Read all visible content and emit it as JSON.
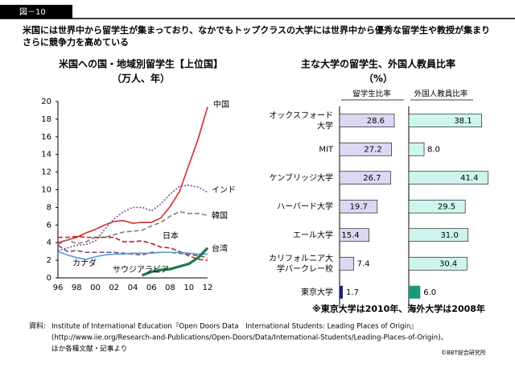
{
  "header": {
    "figure_label": "図－10",
    "description": "米国には世界中から留学生が集まっており、なかでもトップクラスの大学には世界中から優秀な留学生や教授が集まりさらに競争力を高めている"
  },
  "chart_data": [
    {
      "type": "line",
      "title": "米国への国・地域別留学生【上位国】",
      "subtitle": "（万人、年）",
      "categories": [
        "96",
        null,
        "98",
        null,
        "00",
        null,
        "02",
        null,
        "04",
        null,
        "06",
        null,
        "08",
        null,
        "10",
        null,
        "12"
      ],
      "ylim": [
        0,
        20
      ],
      "yticks": [
        0,
        2,
        4,
        6,
        8,
        10,
        12,
        14,
        16,
        18,
        20
      ],
      "series": [
        {
          "name": "中国",
          "color": "#d42a2a",
          "style": "solid",
          "values": [
            4.0,
            4.3,
            4.6,
            5.1,
            5.5,
            6.0,
            6.4,
            6.5,
            6.2,
            6.3,
            6.3,
            6.8,
            8.1,
            9.8,
            12.8,
            15.8,
            19.4
          ]
        },
        {
          "name": "インド",
          "color": "#7a4a9a",
          "style": "dotted",
          "values": [
            3.1,
            3.4,
            3.7,
            3.8,
            4.2,
            5.5,
            6.7,
            7.5,
            8.0,
            8.0,
            7.6,
            8.4,
            9.5,
            10.4,
            10.5,
            10.3,
            9.7
          ]
        },
        {
          "name": "韓国",
          "color": "#808080",
          "style": "dashed",
          "values": [
            3.8,
            4.3,
            3.9,
            4.1,
            4.6,
            4.6,
            4.9,
            5.2,
            5.3,
            5.4,
            5.9,
            6.3,
            7.0,
            7.5,
            7.3,
            7.3,
            7.1
          ]
        },
        {
          "name": "日本",
          "color": "#c02020",
          "style": "dashed",
          "values": [
            4.6,
            4.6,
            4.7,
            4.6,
            4.6,
            4.6,
            4.6,
            4.1,
            4.1,
            4.2,
            3.9,
            3.5,
            3.4,
            3.0,
            2.5,
            2.1,
            2.0
          ]
        },
        {
          "name": "台湾",
          "color": "#6a4a7a",
          "style": "dashed",
          "values": [
            3.7,
            3.0,
            3.1,
            2.9,
            2.9,
            2.9,
            2.9,
            2.8,
            2.7,
            2.6,
            2.9,
            2.9,
            2.9,
            2.8,
            2.7,
            2.5,
            2.3
          ]
        },
        {
          "name": "カナダ",
          "color": "#5b9bd5",
          "style": "solid",
          "values": [
            3.0,
            2.6,
            2.3,
            2.1,
            2.4,
            2.6,
            2.7,
            2.7,
            2.8,
            2.8,
            2.8,
            2.9,
            2.9,
            2.9,
            2.8,
            2.7,
            2.7
          ]
        },
        {
          "name": "サウジアラビア",
          "color": "#1a7a4a",
          "style": "thick",
          "values": [
            null,
            null,
            null,
            null,
            null,
            null,
            null,
            null,
            null,
            0.3,
            0.7,
            0.9,
            1.0,
            1.3,
            1.6,
            2.3,
            3.4
          ]
        }
      ]
    },
    {
      "type": "hbar_panels",
      "title": "主な大学の留学生、外国人教員比率",
      "subtitle": "（%）",
      "categories": [
        "オックスフォード\n大学",
        "MIT",
        "ケンブリッジ大学",
        "ハーバード大学",
        "エール大学",
        "カリフォルニア大\n学バークレー校",
        "東京大学"
      ],
      "xlim": [
        0,
        45
      ],
      "series": [
        {
          "name": "留学生比率",
          "colors": [
            "#dcd8f2",
            "#dcd8f2",
            "#dcd8f2",
            "#dcd8f2",
            "#dcd8f2",
            "#dcd8f2",
            "#1f1f7a"
          ],
          "values": [
            28.6,
            27.2,
            26.7,
            19.7,
            15.4,
            7.4,
            1.7
          ]
        },
        {
          "name": "外国人教員比率",
          "colors": [
            "#cdf5ee",
            "#cdf5ee",
            "#cdf5ee",
            "#cdf5ee",
            "#cdf5ee",
            "#cdf5ee",
            "#1a9a7a"
          ],
          "values": [
            38.1,
            8.0,
            41.4,
            29.5,
            31.0,
            30.4,
            6.0
          ],
          "value_labels": [
            "38.1",
            "8.0",
            "41.4",
            "29.5",
            "31.0",
            "30.4",
            "6.0"
          ]
        }
      ]
    }
  ],
  "footer": {
    "note": "※東京大学は2010年、海外大学は2008年",
    "source_label": "資料:",
    "source": [
      "Institute of International Education『Open Doors Data　International Students: Leading Places of Origin』",
      "(http://www.iie.org/Research-and-Publications/Open-Doors/Data/International-Students/Leading-Places-of-Origin)、",
      "ほか各種文献・記事より"
    ],
    "copyright": "©BBT総合研究所"
  }
}
